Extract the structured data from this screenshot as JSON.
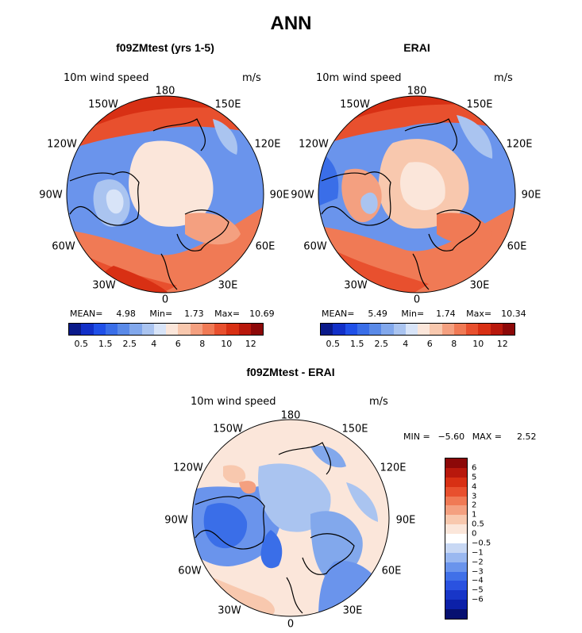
{
  "main_title": "ANN",
  "panels": [
    {
      "title": "f09ZMtest (yrs 1-5)",
      "variable": "10m wind speed",
      "units": "m/s",
      "stats": {
        "mean_label": "MEAN=",
        "mean": "4.98",
        "min_label": "Min=",
        "min": "1.73",
        "max_label": "Max=",
        "max": "10.69"
      }
    },
    {
      "title": "ERAI",
      "variable": "10m wind speed",
      "units": "m/s",
      "stats": {
        "mean_label": "MEAN=",
        "mean": "5.49",
        "min_label": "Min=",
        "min": "1.74",
        "max_label": "Max=",
        "max": "10.34"
      }
    }
  ],
  "diff_panel": {
    "title": "f09ZMtest - ERAI",
    "variable": "10m wind speed",
    "units": "m/s",
    "stats": {
      "min_label": "MIN =",
      "min": "−5.60",
      "max_label": "MAX =",
      "max": "2.52"
    }
  },
  "longitude_labels": [
    "180",
    "150E",
    "120E",
    "90E",
    "60E",
    "30E",
    "0",
    "30W",
    "60W",
    "90W",
    "120W",
    "150W"
  ],
  "colorbar_abs": {
    "colors": [
      "#0a1a8a",
      "#1230c8",
      "#2050e8",
      "#3a6ee8",
      "#5a8ae8",
      "#82a8ec",
      "#aac4f0",
      "#d8e4f8",
      "#fbe6da",
      "#f8c8ae",
      "#f4a080",
      "#f07a55",
      "#e8502e",
      "#d83014",
      "#b8180c",
      "#8c0808"
    ],
    "tick_labels": [
      "0.5",
      "1.5",
      "2.5",
      "4",
      "6",
      "8",
      "10",
      "12"
    ]
  },
  "colorbar_diff": {
    "colors": [
      "#8c0808",
      "#b8180c",
      "#d83014",
      "#e8502e",
      "#f07a55",
      "#f4a080",
      "#f8c8ae",
      "#fbe6da",
      "#ffffff",
      "#c8d8f4",
      "#9ab8f0",
      "#6a94ec",
      "#4070e8",
      "#2a52e0",
      "#1836c8",
      "#0c20a8",
      "#061070"
    ],
    "tick_labels": [
      "6",
      "5",
      "4",
      "3",
      "2",
      "1",
      "0.5",
      "0",
      "−0.5",
      "−1",
      "−2",
      "−3",
      "−4",
      "−5",
      "−6"
    ]
  }
}
